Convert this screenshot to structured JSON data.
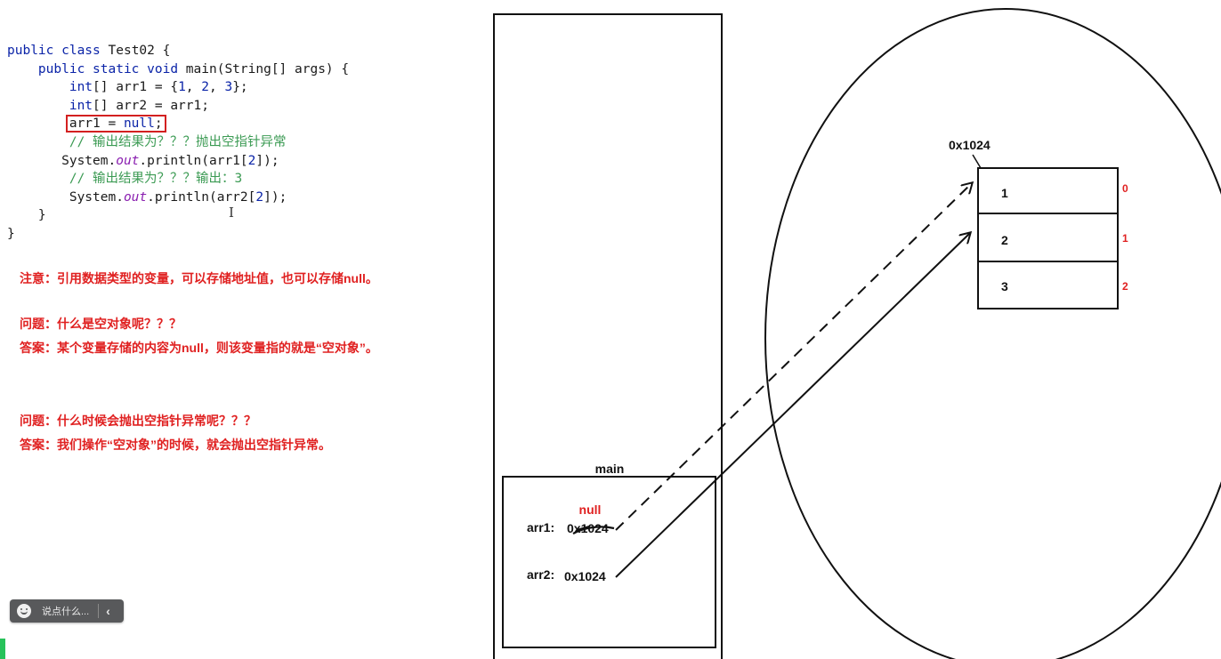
{
  "code_lines": [
    {
      "tokens": [
        {
          "t": "public class ",
          "c": "kw"
        },
        {
          "t": "Test02 {",
          "c": ""
        }
      ]
    },
    {
      "tokens": [
        {
          "t": "    public static void ",
          "c": "kw"
        },
        {
          "t": "main(String[] args) {",
          "c": ""
        }
      ]
    },
    {
      "tokens": [
        {
          "t": "        int",
          "c": "kw"
        },
        {
          "t": "[] arr1 = {",
          "c": ""
        },
        {
          "t": "1",
          "c": "num"
        },
        {
          "t": ", ",
          "c": ""
        },
        {
          "t": "2",
          "c": "num"
        },
        {
          "t": ", ",
          "c": ""
        },
        {
          "t": "3",
          "c": "num"
        },
        {
          "t": "};",
          "c": ""
        }
      ]
    },
    {
      "tokens": [
        {
          "t": "        int",
          "c": "kw"
        },
        {
          "t": "[] arr2 = arr1;",
          "c": ""
        }
      ]
    },
    {
      "tokens": [
        {
          "t": "        ",
          "c": ""
        },
        {
          "t": "arr1 = ",
          "c": "hlstart"
        },
        {
          "t": "null",
          "c": "kw"
        },
        {
          "t": ";",
          "c": "hlend"
        }
      ]
    },
    {
      "tokens": [
        {
          "t": "        // 输出结果为？？？抛出空指针异常",
          "c": "cm"
        }
      ]
    },
    {
      "tokens": [
        {
          "t": "       System.",
          "c": ""
        },
        {
          "t": "out",
          "c": "it"
        },
        {
          "t": ".println(arr1[",
          "c": ""
        },
        {
          "t": "2",
          "c": "num"
        },
        {
          "t": "]);",
          "c": ""
        }
      ]
    },
    {
      "tokens": [
        {
          "t": "        // 输出结果为？？？输出：3",
          "c": "cm"
        }
      ]
    },
    {
      "tokens": [
        {
          "t": "        System.",
          "c": ""
        },
        {
          "t": "out",
          "c": "it"
        },
        {
          "t": ".println(arr2[",
          "c": ""
        },
        {
          "t": "2",
          "c": "num"
        },
        {
          "t": "]);",
          "c": ""
        }
      ]
    },
    {
      "tokens": [
        {
          "t": "    }",
          "c": ""
        }
      ]
    },
    {
      "tokens": [
        {
          "t": "}",
          "c": ""
        }
      ]
    }
  ],
  "notes": {
    "note1": "注意：引用数据类型的变量，可以存储地址值，也可以存储null。",
    "q1": "问题：什么是空对象呢？？？",
    "a1": "答案：某个变量存储的内容为null，则该变量指的就是“空对象”。",
    "q2": "问题：什么时候会抛出空指针异常呢？？？",
    "a2": "答案：我们操作“空对象”的时候，就会抛出空指针异常。"
  },
  "diagram": {
    "main_label": "main",
    "null_label": "null",
    "arr1_label": "arr1:",
    "arr1_value": "0x1024",
    "arr2_label": "arr2:",
    "arr2_value": "0x1024",
    "heap_address": "0x1024",
    "cells": [
      "1",
      "2",
      "3"
    ],
    "indices": [
      "0",
      "1",
      "2"
    ]
  },
  "chat": {
    "placeholder": "说点什么..."
  },
  "colors": {
    "red": "#e02121",
    "keyword": "#0b24a8",
    "comment": "#3c9b54",
    "field": "#8a1fb0",
    "chatbar": "#58595b",
    "green": "#27c25a"
  }
}
